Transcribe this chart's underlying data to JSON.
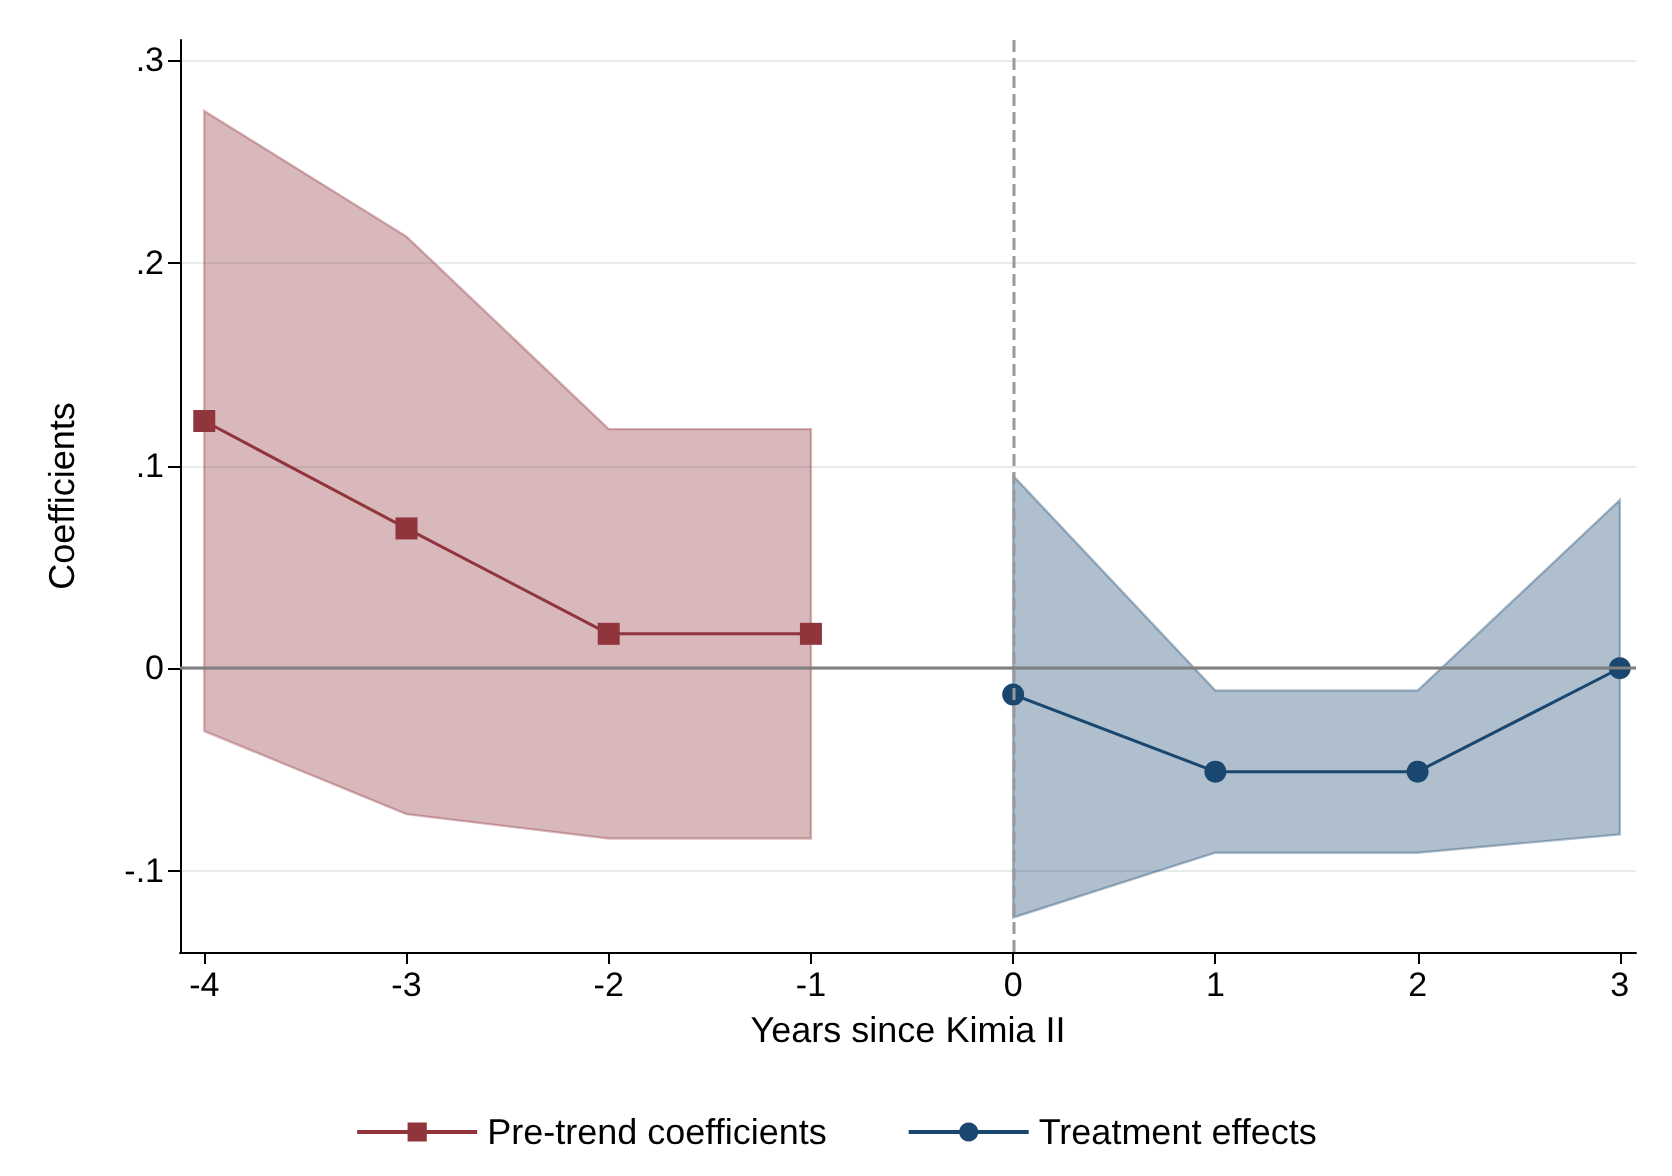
{
  "chart_data": {
    "type": "line",
    "xlabel": "Years since Kimia II",
    "ylabel": "Coefficients",
    "xlim": [
      -4.12,
      3.08
    ],
    "xticks": [
      -4,
      -3,
      -2,
      -1,
      0,
      1,
      2,
      3
    ],
    "ylim": [
      -0.14,
      0.31
    ],
    "yticks": [
      {
        "value": -0.1,
        "label": "-.1"
      },
      {
        "value": 0,
        "label": "0"
      },
      {
        "value": 0.1,
        "label": ".1"
      },
      {
        "value": 0.2,
        "label": ".2"
      },
      {
        "value": 0.3,
        "label": ".3"
      }
    ],
    "grid": "y",
    "legend": "bottom",
    "line_style": "solid",
    "ref_lines": [
      {
        "axis": "y",
        "value": 0,
        "color": "#7f7f7f",
        "line_style": "solid"
      },
      {
        "axis": "x",
        "value": 0,
        "color": "#999999",
        "line_style": "dashed"
      }
    ],
    "series": [
      {
        "name": "Pre-trend coefficients",
        "color": "#90353b",
        "marker": "square",
        "x": [
          -4,
          -3,
          -2,
          -1
        ],
        "values": [
          0.122,
          0.069,
          0.017,
          0.017
        ],
        "lower": [
          -0.031,
          -0.072,
          -0.084,
          -0.084
        ],
        "upper": [
          0.275,
          0.213,
          0.118,
          0.118
        ]
      },
      {
        "name": "Treatment effects",
        "color": "#1a476f",
        "marker": "circle",
        "x": [
          0,
          1,
          2,
          3
        ],
        "values": [
          -0.013,
          -0.051,
          -0.051,
          0.0
        ],
        "lower": [
          -0.123,
          -0.091,
          -0.091,
          -0.082
        ],
        "upper": [
          0.095,
          -0.011,
          -0.011,
          0.083
        ]
      }
    ]
  }
}
